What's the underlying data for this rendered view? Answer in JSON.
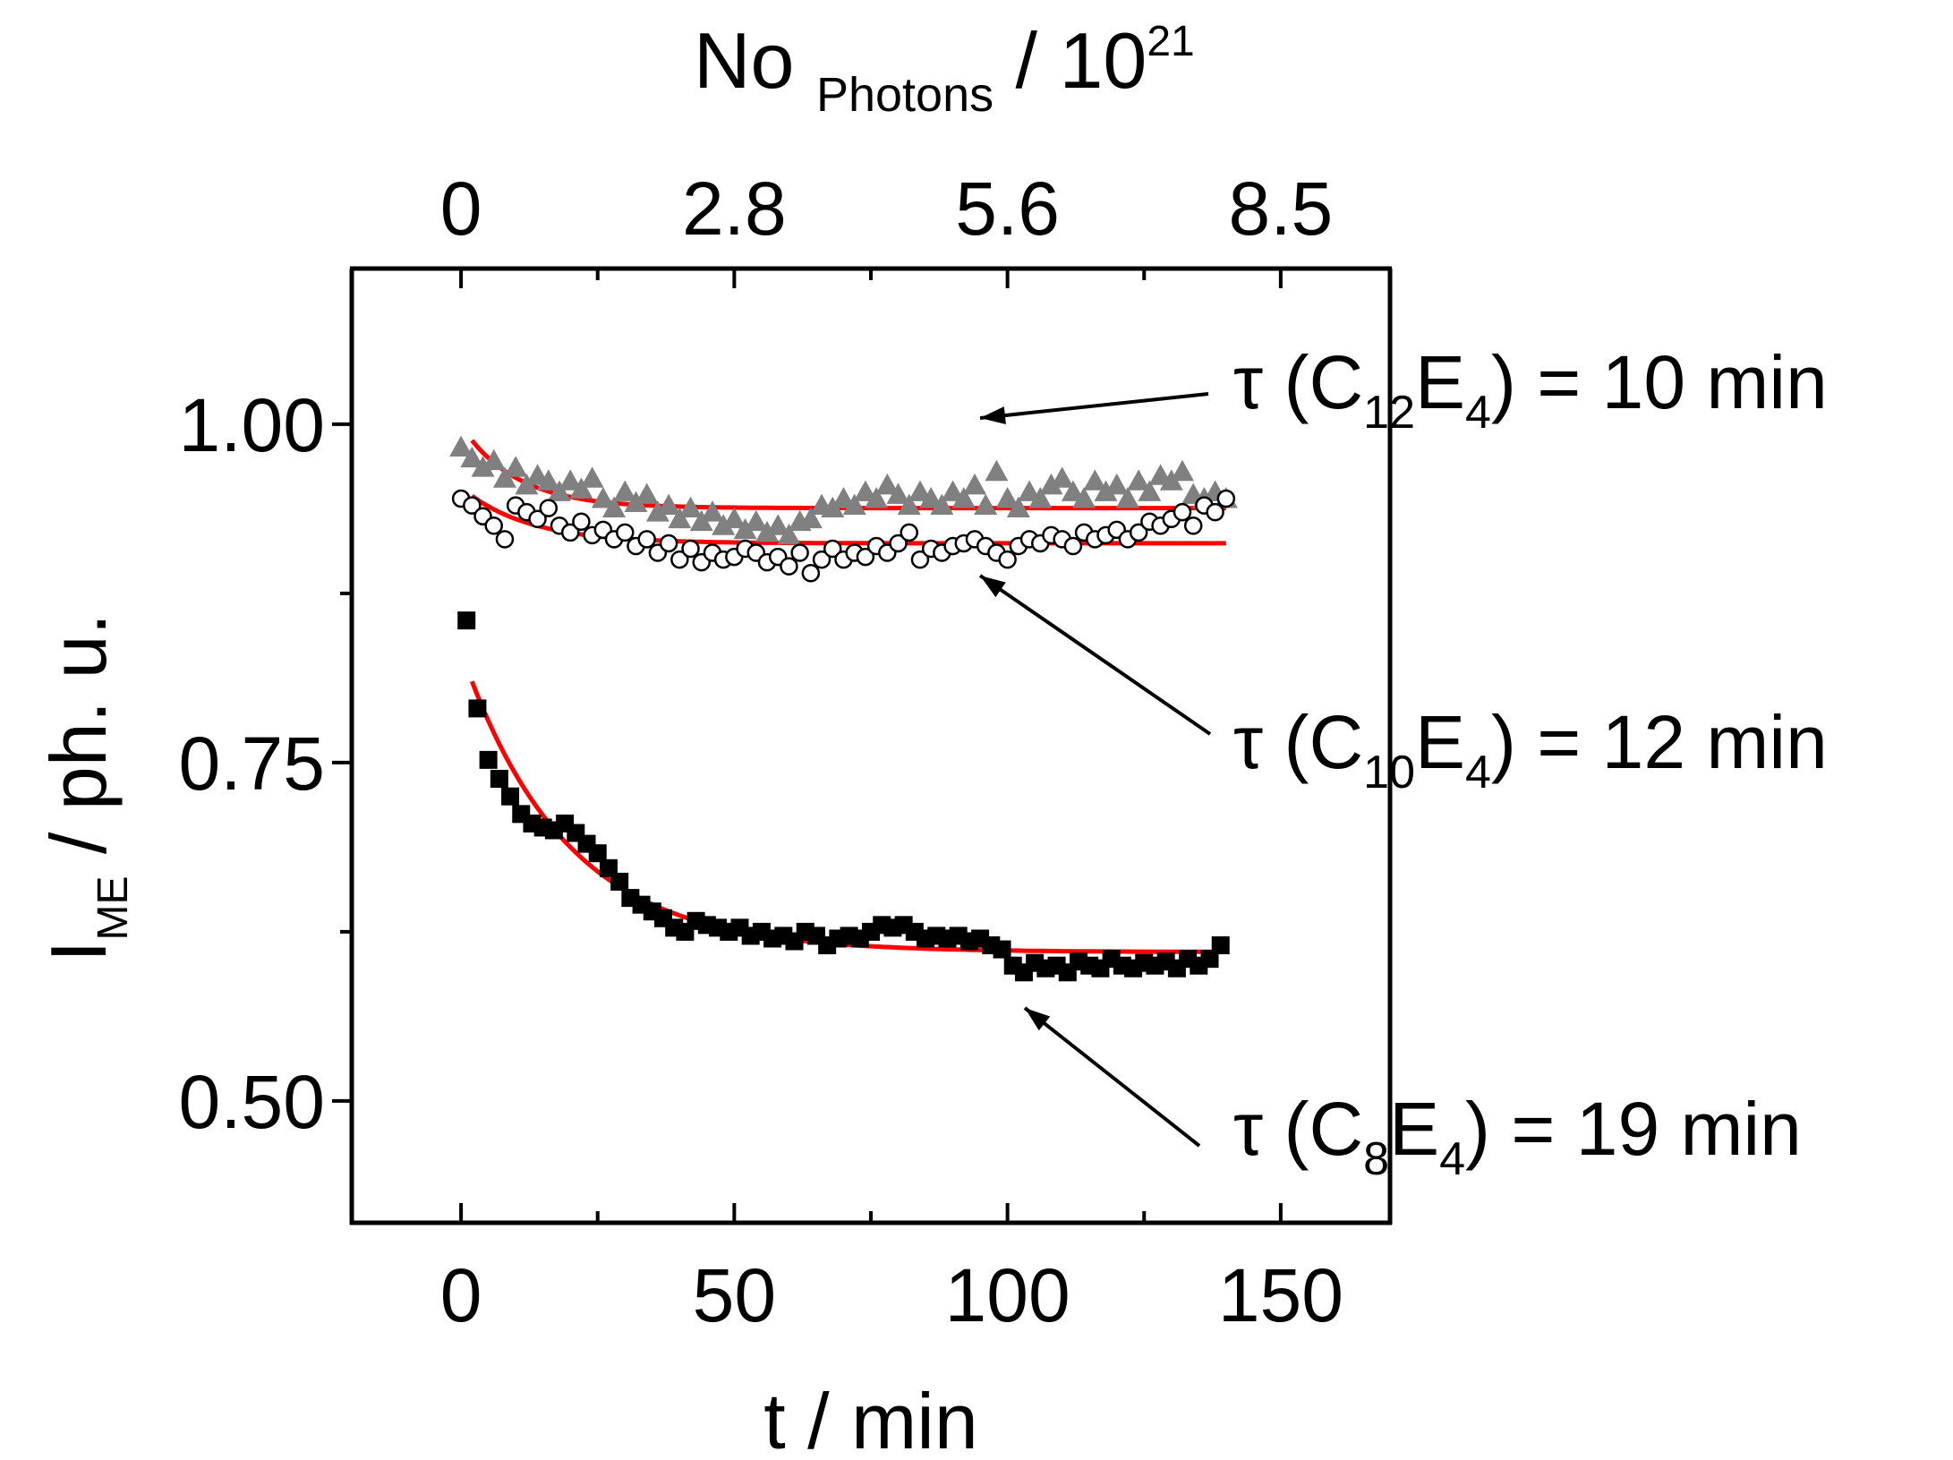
{
  "chart_data": {
    "type": "scatter",
    "title": "",
    "xlabel": "t / min",
    "xlim": [
      -20,
      170
    ],
    "x_ticks": [
      0,
      50,
      100,
      150
    ],
    "x_tick_labels": [
      "0",
      "50",
      "100",
      "150"
    ],
    "ylabel": {
      "main": "I",
      "sub": "ME",
      "rest": " / ph. u."
    },
    "ylim": [
      0.41,
      1.115
    ],
    "y_ticks": [
      0.5,
      0.75,
      1.0
    ],
    "y_tick_labels": [
      "0.50",
      "0.75",
      "1.00"
    ],
    "y_minor_ticks": [
      0.625,
      0.875
    ],
    "top_axis": {
      "label_main": "No ",
      "label_sub": "Photons",
      "label_rest": " / 10",
      "label_sup": "21",
      "ticks_at_t": [
        0,
        50,
        100,
        150
      ],
      "tick_labels": [
        "0",
        "2.8",
        "5.6",
        "8.5"
      ]
    },
    "grid": false,
    "series": [
      {
        "name": "C12E4",
        "marker": "triangle",
        "color": "#808080",
        "points": [
          [
            0,
            0.983
          ],
          [
            2,
            0.975
          ],
          [
            4,
            0.968
          ],
          [
            6,
            0.973
          ],
          [
            8,
            0.96
          ],
          [
            10,
            0.968
          ],
          [
            12,
            0.955
          ],
          [
            14,
            0.962
          ],
          [
            16,
            0.958
          ],
          [
            18,
            0.95
          ],
          [
            20,
            0.958
          ],
          [
            22,
            0.952
          ],
          [
            24,
            0.96
          ],
          [
            26,
            0.945
          ],
          [
            28,
            0.938
          ],
          [
            30,
            0.95
          ],
          [
            32,
            0.942
          ],
          [
            34,
            0.948
          ],
          [
            36,
            0.935
          ],
          [
            38,
            0.94
          ],
          [
            40,
            0.93
          ],
          [
            42,
            0.938
          ],
          [
            44,
            0.928
          ],
          [
            46,
            0.935
          ],
          [
            48,
            0.925
          ],
          [
            50,
            0.93
          ],
          [
            52,
            0.922
          ],
          [
            54,
            0.928
          ],
          [
            56,
            0.92
          ],
          [
            58,
            0.925
          ],
          [
            60,
            0.918
          ],
          [
            62,
            0.928
          ],
          [
            64,
            0.93
          ],
          [
            66,
            0.94
          ],
          [
            68,
            0.938
          ],
          [
            70,
            0.945
          ],
          [
            72,
            0.94
          ],
          [
            74,
            0.95
          ],
          [
            76,
            0.945
          ],
          [
            78,
            0.955
          ],
          [
            80,
            0.948
          ],
          [
            82,
            0.94
          ],
          [
            84,
            0.95
          ],
          [
            86,
            0.945
          ],
          [
            88,
            0.94
          ],
          [
            90,
            0.95
          ],
          [
            92,
            0.945
          ],
          [
            94,
            0.955
          ],
          [
            96,
            0.94
          ],
          [
            98,
            0.965
          ],
          [
            100,
            0.945
          ],
          [
            102,
            0.938
          ],
          [
            104,
            0.95
          ],
          [
            106,
            0.945
          ],
          [
            108,
            0.955
          ],
          [
            110,
            0.96
          ],
          [
            112,
            0.95
          ],
          [
            114,
            0.945
          ],
          [
            116,
            0.958
          ],
          [
            118,
            0.95
          ],
          [
            120,
            0.955
          ],
          [
            122,
            0.945
          ],
          [
            124,
            0.958
          ],
          [
            126,
            0.95
          ],
          [
            128,
            0.962
          ],
          [
            130,
            0.958
          ],
          [
            132,
            0.965
          ],
          [
            134,
            0.948
          ],
          [
            136,
            0.945
          ],
          [
            138,
            0.95
          ],
          [
            140,
            0.945
          ]
        ],
        "fit": {
          "A": 0.938,
          "B": 0.05,
          "tau": 10
        },
        "annotation": {
          "prefix": "τ (C",
          "sub1": "12",
          "mid": "E",
          "sub2": "4",
          "suffix": ") = 10 min"
        }
      },
      {
        "name": "C10E4",
        "marker": "circle-open",
        "color": "#000000",
        "points": [
          [
            0,
            0.945
          ],
          [
            2,
            0.94
          ],
          [
            4,
            0.932
          ],
          [
            6,
            0.925
          ],
          [
            8,
            0.915
          ],
          [
            10,
            0.94
          ],
          [
            12,
            0.935
          ],
          [
            14,
            0.93
          ],
          [
            16,
            0.938
          ],
          [
            18,
            0.925
          ],
          [
            20,
            0.92
          ],
          [
            22,
            0.928
          ],
          [
            24,
            0.918
          ],
          [
            26,
            0.922
          ],
          [
            28,
            0.915
          ],
          [
            30,
            0.92
          ],
          [
            32,
            0.91
          ],
          [
            34,
            0.915
          ],
          [
            36,
            0.905
          ],
          [
            38,
            0.912
          ],
          [
            40,
            0.9
          ],
          [
            42,
            0.908
          ],
          [
            44,
            0.898
          ],
          [
            46,
            0.905
          ],
          [
            48,
            0.9
          ],
          [
            50,
            0.902
          ],
          [
            52,
            0.908
          ],
          [
            54,
            0.905
          ],
          [
            56,
            0.898
          ],
          [
            58,
            0.902
          ],
          [
            60,
            0.895
          ],
          [
            62,
            0.905
          ],
          [
            64,
            0.89
          ],
          [
            66,
            0.9
          ],
          [
            68,
            0.908
          ],
          [
            70,
            0.9
          ],
          [
            72,
            0.905
          ],
          [
            74,
            0.902
          ],
          [
            76,
            0.91
          ],
          [
            78,
            0.905
          ],
          [
            80,
            0.912
          ],
          [
            82,
            0.92
          ],
          [
            84,
            0.9
          ],
          [
            86,
            0.908
          ],
          [
            88,
            0.905
          ],
          [
            90,
            0.91
          ],
          [
            92,
            0.912
          ],
          [
            94,
            0.915
          ],
          [
            96,
            0.91
          ],
          [
            98,
            0.905
          ],
          [
            100,
            0.9
          ],
          [
            102,
            0.91
          ],
          [
            104,
            0.915
          ],
          [
            106,
            0.912
          ],
          [
            108,
            0.918
          ],
          [
            110,
            0.915
          ],
          [
            112,
            0.91
          ],
          [
            114,
            0.92
          ],
          [
            116,
            0.915
          ],
          [
            118,
            0.918
          ],
          [
            120,
            0.922
          ],
          [
            122,
            0.915
          ],
          [
            124,
            0.92
          ],
          [
            126,
            0.928
          ],
          [
            128,
            0.925
          ],
          [
            130,
            0.93
          ],
          [
            132,
            0.935
          ],
          [
            134,
            0.925
          ],
          [
            136,
            0.94
          ],
          [
            138,
            0.935
          ],
          [
            140,
            0.945
          ]
        ],
        "fit": {
          "A": 0.912,
          "B": 0.035,
          "tau": 12
        },
        "annotation": {
          "prefix": "τ (C",
          "sub1": "10",
          "mid": "E",
          "sub2": "4",
          "suffix": ") = 12 min"
        }
      },
      {
        "name": "C8E4",
        "marker": "square",
        "color": "#000000",
        "points": [
          [
            1,
            0.855
          ],
          [
            3,
            0.79
          ],
          [
            5,
            0.752
          ],
          [
            7,
            0.738
          ],
          [
            9,
            0.725
          ],
          [
            11,
            0.712
          ],
          [
            13,
            0.705
          ],
          [
            15,
            0.702
          ],
          [
            17,
            0.7
          ],
          [
            19,
            0.705
          ],
          [
            21,
            0.698
          ],
          [
            23,
            0.69
          ],
          [
            25,
            0.683
          ],
          [
            27,
            0.672
          ],
          [
            29,
            0.662
          ],
          [
            31,
            0.65
          ],
          [
            33,
            0.645
          ],
          [
            35,
            0.64
          ],
          [
            37,
            0.635
          ],
          [
            39,
            0.628
          ],
          [
            41,
            0.625
          ],
          [
            43,
            0.633
          ],
          [
            45,
            0.63
          ],
          [
            47,
            0.628
          ],
          [
            49,
            0.625
          ],
          [
            51,
            0.628
          ],
          [
            53,
            0.622
          ],
          [
            55,
            0.625
          ],
          [
            57,
            0.62
          ],
          [
            59,
            0.622
          ],
          [
            61,
            0.618
          ],
          [
            63,
            0.625
          ],
          [
            65,
            0.622
          ],
          [
            67,
            0.615
          ],
          [
            69,
            0.62
          ],
          [
            71,
            0.622
          ],
          [
            73,
            0.62
          ],
          [
            75,
            0.625
          ],
          [
            77,
            0.63
          ],
          [
            79,
            0.628
          ],
          [
            81,
            0.63
          ],
          [
            83,
            0.625
          ],
          [
            85,
            0.62
          ],
          [
            87,
            0.622
          ],
          [
            89,
            0.62
          ],
          [
            91,
            0.622
          ],
          [
            93,
            0.618
          ],
          [
            95,
            0.62
          ],
          [
            97,
            0.615
          ],
          [
            99,
            0.612
          ],
          [
            101,
            0.6
          ],
          [
            103,
            0.595
          ],
          [
            105,
            0.602
          ],
          [
            107,
            0.598
          ],
          [
            109,
            0.6
          ],
          [
            111,
            0.595
          ],
          [
            113,
            0.603
          ],
          [
            115,
            0.6
          ],
          [
            117,
            0.598
          ],
          [
            119,
            0.605
          ],
          [
            121,
            0.6
          ],
          [
            123,
            0.598
          ],
          [
            125,
            0.602
          ],
          [
            127,
            0.6
          ],
          [
            129,
            0.603
          ],
          [
            131,
            0.598
          ],
          [
            133,
            0.605
          ],
          [
            135,
            0.6
          ],
          [
            137,
            0.605
          ],
          [
            139,
            0.615
          ]
        ],
        "fit": {
          "A": 0.61,
          "B": 0.2,
          "tau": 19
        },
        "annotation": {
          "prefix": "τ (C",
          "sub1": "8",
          "mid": "E",
          "sub2": "4",
          "suffix": ") = 19 min"
        }
      }
    ],
    "fit_color": "#ff0000"
  }
}
